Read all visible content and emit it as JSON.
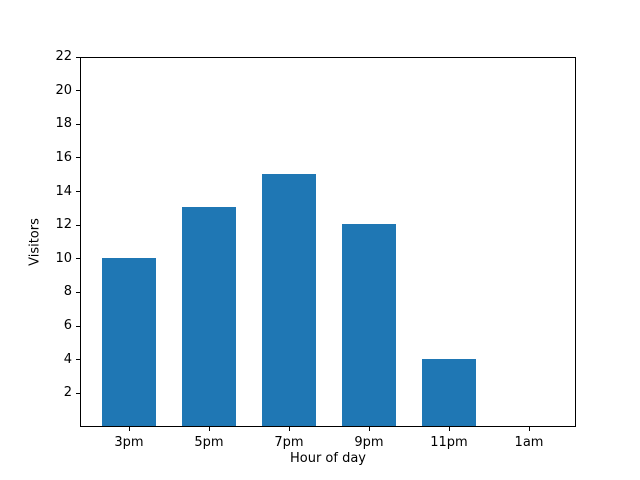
{
  "chart_data": {
    "type": "bar",
    "title": "",
    "categories": [
      "3pm",
      "5pm",
      "7pm",
      "9pm",
      "11pm",
      "1am"
    ],
    "values": [
      10,
      13,
      15,
      12,
      4,
      0
    ],
    "xlabel": "Hour of day",
    "ylabel": "Visitors",
    "ylim": [
      0,
      22
    ],
    "yticks": [
      2,
      4,
      6,
      8,
      10,
      12,
      14,
      16,
      18,
      20,
      22
    ],
    "bar_color": "#1f77b4",
    "axis_color": "#000000",
    "text_color": "#000000",
    "background_color": "#ffffff",
    "grid": false,
    "legend": null
  }
}
